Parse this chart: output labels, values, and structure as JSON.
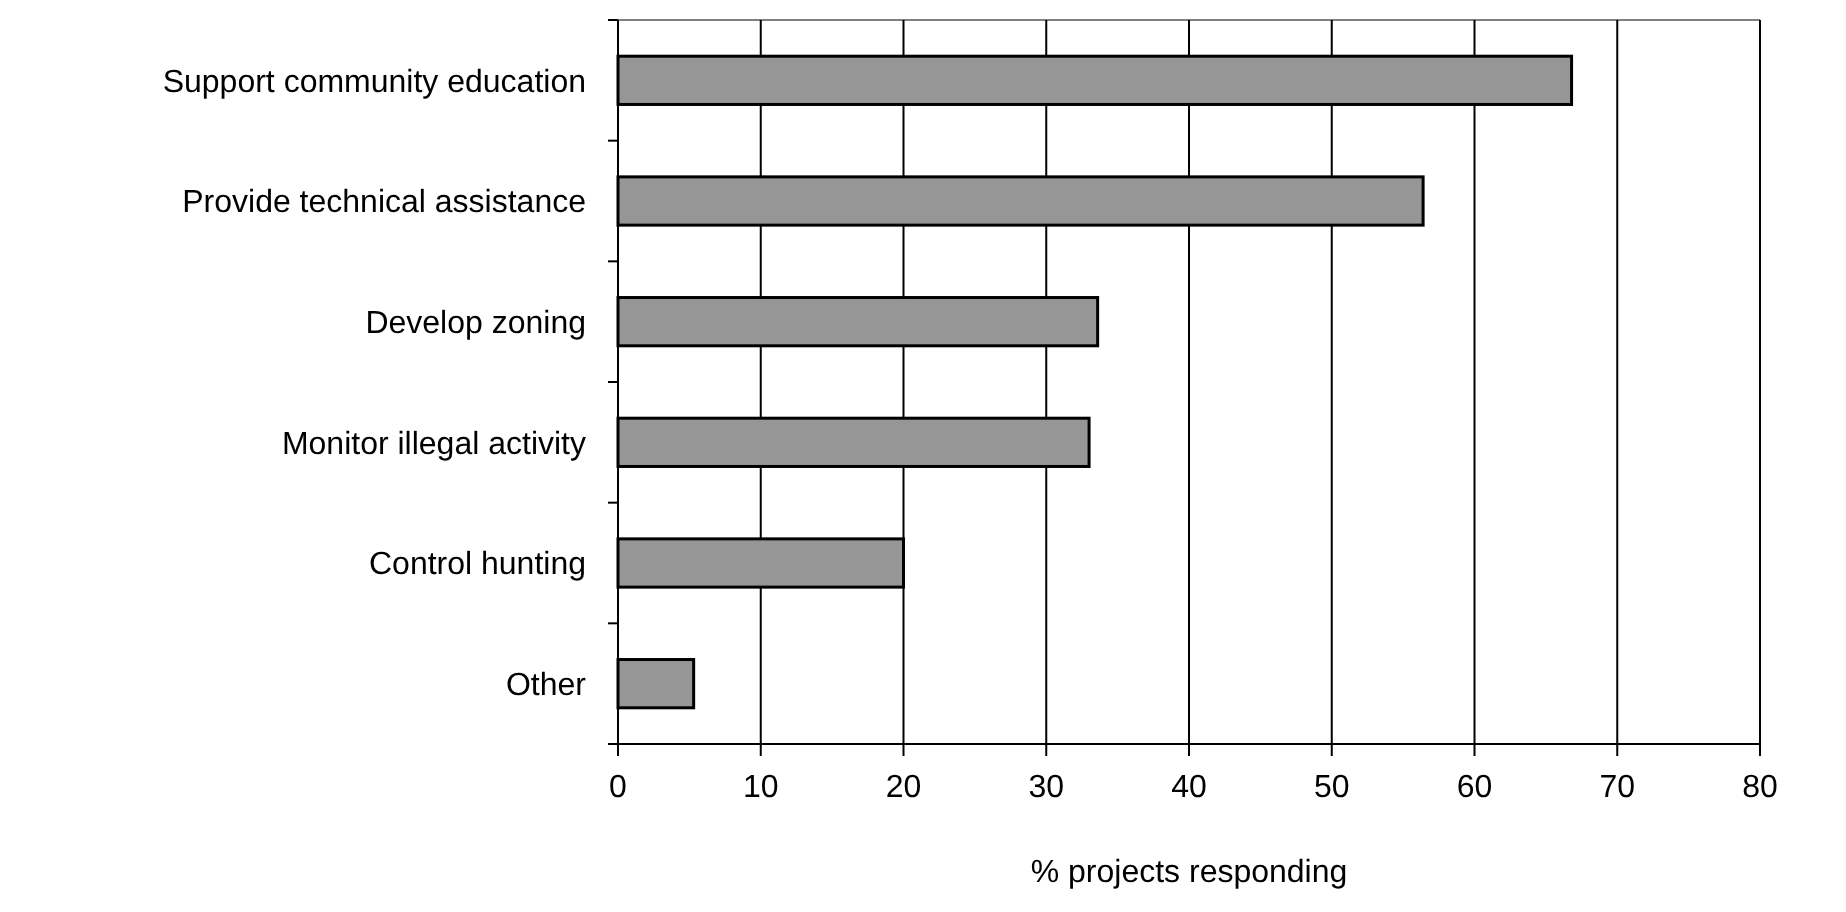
{
  "chart_data": {
    "type": "bar",
    "orientation": "horizontal",
    "xlabel": "% projects responding",
    "categories": [
      "Support community education",
      "Provide technical assistance",
      "Develop zoning",
      "Monitor illegal activity",
      "Control hunting",
      "Other"
    ],
    "values": [
      66.8,
      56.4,
      33.6,
      33.0,
      20.0,
      5.3
    ],
    "color": "#969696",
    "xlim": [
      0,
      80
    ],
    "xticks": [
      0,
      10,
      20,
      30,
      40,
      50,
      60,
      70,
      80
    ],
    "grid": "x"
  }
}
